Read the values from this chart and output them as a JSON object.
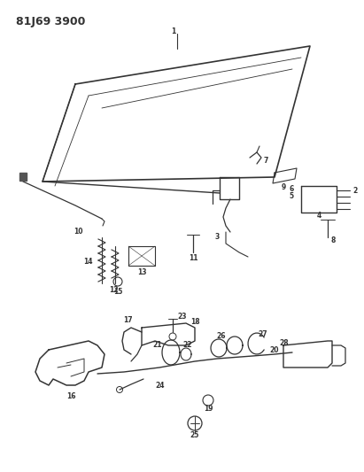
{
  "title": "81J69 3900",
  "background_color": "#ffffff",
  "title_fontsize": 9,
  "title_fontweight": "bold",
  "fig_width": 4.11,
  "fig_height": 5.33,
  "dpi": 100,
  "line_color": "#333333",
  "label_fontsize": 5.5
}
